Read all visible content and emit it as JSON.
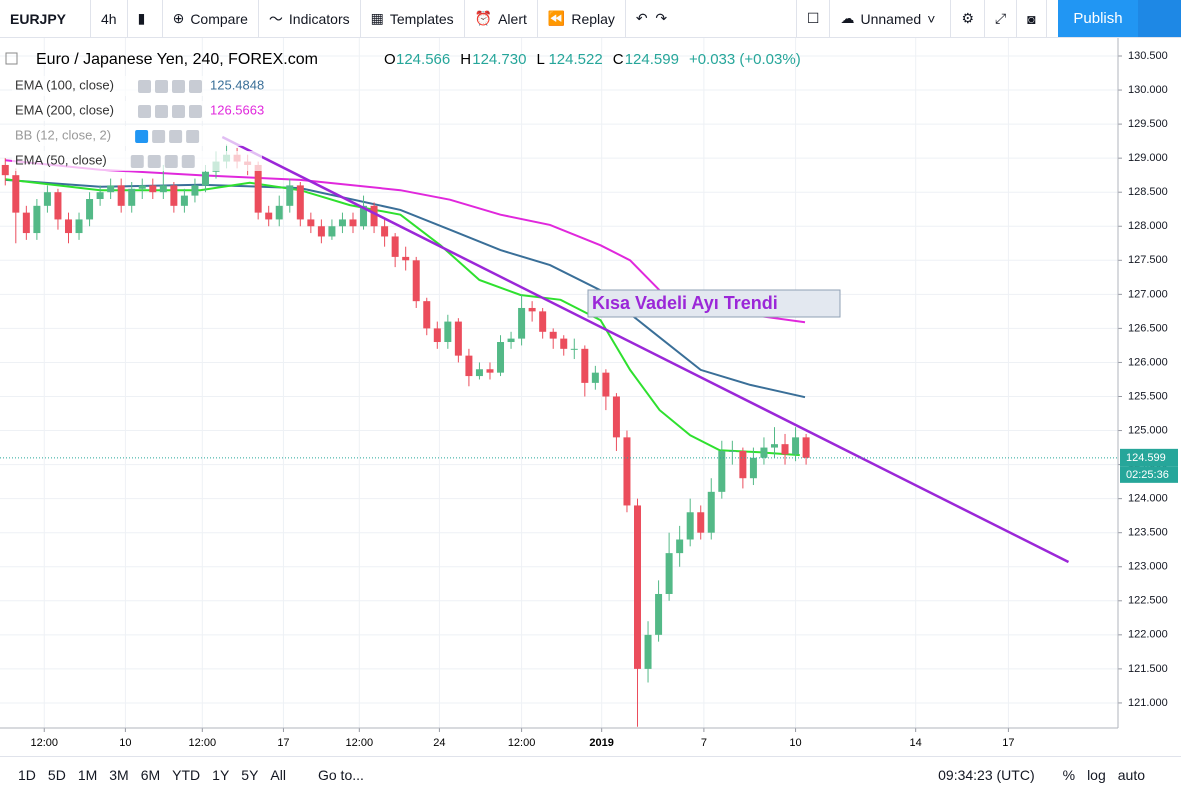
{
  "toolbar": {
    "symbol": "EURJPY",
    "interval": "4h",
    "items": [
      "Compare",
      "Indicators",
      "Templates",
      "Alert",
      "Replay"
    ],
    "layout": "Unnamed",
    "publish": "Publish"
  },
  "legend": {
    "title": "Euro / Japanese Yen, 240, FOREX.com",
    "ohlc": [
      {
        "key": "O",
        "value": "124.566"
      },
      {
        "key": "H",
        "value": "124.730"
      },
      {
        "key": "L",
        "value": "124.522"
      },
      {
        "key": "C",
        "value": "124.599"
      }
    ],
    "change": "+0.033 (+0.03%)",
    "indicators": [
      {
        "name": "EMA (100, close)",
        "value": "125.4848",
        "color": "#3a6f98"
      },
      {
        "name": "EMA (200, close)",
        "value": "126.5663",
        "color": "#e028dc"
      },
      {
        "name": "BB (12, close, 2)"
      },
      {
        "name": "EMA (50, close)"
      }
    ]
  },
  "chart_data": {
    "type": "candlestick",
    "up_color": "#53b987",
    "down_color": "#eb4d5c",
    "xlim": [
      -0.5,
      105.6
    ],
    "ylim": [
      120.632,
      130.735
    ],
    "grid": true,
    "yticks": [
      {
        "value": 121,
        "label": "121.000"
      },
      {
        "value": 121.5,
        "label": "121.500"
      },
      {
        "value": 122,
        "label": "122.000"
      },
      {
        "value": 122.5,
        "label": "122.500"
      },
      {
        "value": 123,
        "label": "123.000"
      },
      {
        "value": 123.5,
        "label": "123.500"
      },
      {
        "value": 124,
        "label": "124.000"
      },
      {
        "value": 124.5,
        "label": "124.500"
      },
      {
        "value": 125,
        "label": "125.000"
      },
      {
        "value": 125.5,
        "label": "125.500"
      },
      {
        "value": 126,
        "label": "126.000"
      },
      {
        "value": 126.5,
        "label": "126.500"
      },
      {
        "value": 127,
        "label": "127.000"
      },
      {
        "value": 127.5,
        "label": "127.500"
      },
      {
        "value": 128,
        "label": "128.000"
      },
      {
        "value": 128.5,
        "label": "128.500"
      },
      {
        "value": 129,
        "label": "129.000"
      },
      {
        "value": 129.5,
        "label": "129.500"
      },
      {
        "value": 130,
        "label": "130.000"
      },
      {
        "value": 130.5,
        "label": "130.500"
      }
    ],
    "xticks": [
      {
        "value": 3.7,
        "label": "12:00"
      },
      {
        "value": 11.4,
        "label": "10"
      },
      {
        "value": 18.7,
        "label": "12:00"
      },
      {
        "value": 26.4,
        "label": "17"
      },
      {
        "value": 33.6,
        "label": "12:00"
      },
      {
        "value": 41.2,
        "label": "24"
      },
      {
        "value": 49,
        "label": "12:00"
      },
      {
        "value": 56.6,
        "label": "2019"
      },
      {
        "value": 66.3,
        "label": "7"
      },
      {
        "value": 75,
        "label": "10"
      },
      {
        "value": 86.4,
        "label": "14"
      },
      {
        "value": 95.2,
        "label": "17"
      }
    ],
    "open": [
      128.9,
      128.75,
      128.2,
      127.9,
      128.3,
      128.5,
      128.1,
      127.9,
      128.1,
      128.4,
      128.5,
      128.6,
      128.3,
      128.55,
      128.6,
      128.5,
      128.6,
      128.3,
      128.45,
      128.6,
      128.8,
      128.95,
      129.05,
      128.95,
      128.9,
      128.2,
      128.1,
      128.3,
      128.6,
      128.1,
      128.0,
      127.85,
      128.0,
      128.1,
      128.0,
      128.3,
      128.0,
      127.85,
      127.55,
      127.5,
      126.9,
      126.5,
      126.3,
      126.6,
      126.1,
      125.8,
      125.9,
      125.85,
      126.3,
      126.35,
      126.8,
      126.75,
      126.45,
      126.35,
      126.2,
      126.2,
      125.7,
      125.85,
      125.5,
      124.9,
      123.9,
      121.5,
      122.0,
      122.6,
      123.2,
      123.4,
      123.8,
      123.5,
      124.1,
      124.7,
      124.7,
      124.3,
      124.6,
      124.75,
      124.8,
      124.65,
      124.9
    ],
    "high": [
      129.0,
      128.85,
      128.3,
      128.4,
      128.6,
      128.55,
      128.2,
      128.2,
      128.5,
      128.6,
      128.7,
      128.7,
      128.65,
      128.7,
      128.7,
      128.9,
      128.65,
      128.55,
      128.7,
      128.9,
      129.1,
      129.2,
      129.15,
      129.05,
      128.95,
      128.3,
      128.45,
      128.7,
      128.65,
      128.2,
      128.1,
      128.1,
      128.2,
      128.2,
      128.45,
      128.35,
      128.1,
      127.9,
      127.7,
      127.55,
      126.95,
      126.6,
      126.7,
      126.65,
      126.2,
      126.0,
      126.0,
      126.4,
      126.45,
      127.0,
      126.9,
      126.8,
      126.5,
      126.4,
      126.35,
      126.25,
      125.95,
      125.9,
      125.55,
      125.0,
      124.0,
      122.2,
      122.8,
      123.5,
      123.6,
      124.0,
      123.9,
      124.3,
      124.85,
      124.85,
      124.75,
      124.75,
      124.9,
      125.05,
      124.95,
      125.05,
      124.95
    ],
    "low": [
      128.6,
      127.75,
      127.8,
      127.8,
      128.2,
      127.95,
      127.75,
      127.8,
      128.0,
      128.3,
      128.4,
      128.2,
      128.2,
      128.4,
      128.4,
      128.4,
      128.2,
      128.2,
      128.35,
      128.5,
      128.7,
      128.85,
      128.85,
      128.75,
      128.1,
      128.0,
      128.0,
      128.2,
      128.0,
      127.9,
      127.75,
      127.8,
      127.9,
      127.9,
      127.95,
      127.9,
      127.7,
      127.4,
      127.35,
      126.8,
      126.4,
      126.2,
      126.2,
      126.0,
      125.65,
      125.75,
      125.75,
      125.8,
      126.2,
      126.25,
      126.6,
      126.35,
      126.2,
      126.1,
      126.05,
      125.5,
      125.6,
      125.3,
      124.7,
      123.8,
      120.65,
      121.3,
      121.9,
      122.5,
      123.0,
      123.3,
      123.4,
      123.4,
      124.0,
      124.5,
      124.15,
      124.2,
      124.5,
      124.6,
      124.5,
      124.55,
      124.5
    ],
    "close": [
      128.75,
      128.2,
      127.9,
      128.3,
      128.5,
      128.1,
      127.9,
      128.1,
      128.4,
      128.5,
      128.6,
      128.3,
      128.55,
      128.6,
      128.5,
      128.6,
      128.3,
      128.45,
      128.6,
      128.8,
      128.95,
      129.05,
      128.95,
      128.9,
      128.2,
      128.1,
      128.3,
      128.6,
      128.1,
      128.0,
      127.85,
      128.0,
      128.1,
      128.0,
      128.3,
      128.0,
      127.85,
      127.55,
      127.5,
      126.9,
      126.5,
      126.3,
      126.6,
      126.1,
      125.8,
      125.9,
      125.85,
      126.3,
      126.35,
      126.8,
      126.75,
      126.45,
      126.35,
      126.2,
      126.2,
      125.7,
      125.85,
      125.5,
      124.9,
      123.9,
      121.5,
      122.0,
      122.6,
      123.2,
      123.4,
      123.8,
      123.5,
      124.1,
      124.7,
      124.7,
      124.3,
      124.6,
      124.75,
      124.8,
      124.65,
      124.9,
      124.599
    ],
    "lines": [
      {
        "color": "#3a6f98",
        "x": [
          0,
          9,
          18.5,
          28,
          37.5,
          42.2,
          47,
          51.7,
          56.5,
          61.2,
          66,
          70.7,
          75.9
        ],
        "values": [
          128.68,
          128.58,
          128.61,
          128.56,
          128.24,
          127.95,
          127.65,
          127.43,
          127.06,
          126.48,
          125.89,
          125.67,
          125.49
        ]
      },
      {
        "color": "#e028dc",
        "x": [
          0,
          9,
          18.5,
          28,
          37.5,
          42.2,
          47,
          51.7,
          56.5,
          59.3,
          62.1,
          66,
          70.7,
          75.9
        ],
        "values": [
          128.97,
          128.83,
          128.75,
          128.68,
          128.53,
          128.39,
          128.17,
          128.02,
          127.72,
          127.5,
          127.06,
          126.84,
          126.7,
          126.59
        ]
      },
      {
        "color": "#2fe02f",
        "x": [
          0,
          9,
          18.5,
          23.2,
          28,
          32.7,
          37.5,
          41.3,
          45,
          48.9,
          52.7,
          56.5,
          59.3,
          62.1,
          65,
          67.8,
          71.6,
          75.4
        ],
        "values": [
          128.69,
          128.53,
          128.53,
          128.64,
          128.53,
          128.31,
          128.17,
          127.72,
          127.21,
          126.99,
          126.92,
          126.62,
          125.89,
          125.3,
          124.93,
          124.71,
          124.68,
          124.64
        ]
      }
    ],
    "trendline": {
      "color": "#9b27d8",
      "x": [
        20.6,
        100.9
      ],
      "values": [
        129.31,
        123.07
      ]
    },
    "annotation": "Kısa Vadeli Ayı Trendi",
    "last_price": 124.599,
    "countdown": "02:25:36"
  },
  "bottom": {
    "ranges": [
      "1D",
      "5D",
      "1M",
      "3M",
      "6M",
      "YTD",
      "1Y",
      "5Y",
      "All"
    ],
    "goto": "Go to...",
    "time": "09:34:23 (UTC)",
    "options": [
      "%",
      "log",
      "auto"
    ]
  }
}
